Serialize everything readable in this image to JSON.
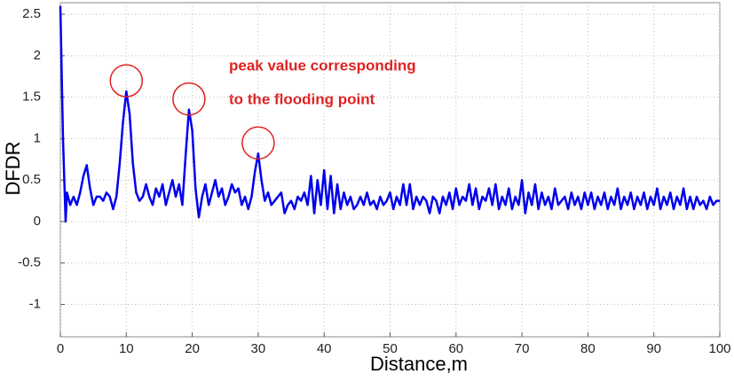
{
  "chart_data": {
    "type": "line",
    "xlabel": "Distance,m",
    "ylabel": "DFDR",
    "annotations": [
      "peak value corresponding",
      "to the flooding point"
    ],
    "color": "#0000ee",
    "highlight_color": "#e02020",
    "grid": true,
    "xlim": [
      0,
      100
    ],
    "xticks": [
      0,
      10,
      20,
      30,
      40,
      50,
      60,
      70,
      80,
      90,
      100
    ],
    "ylim": [
      -1.39,
      2.64
    ],
    "yticks": [
      -1,
      -0.5,
      0,
      0.5,
      1,
      1.5,
      2,
      2.5
    ],
    "highlights": [
      21,
      40,
      61
    ],
    "x": [
      0,
      0.4,
      0.8,
      1,
      1.5,
      2,
      2.5,
      3,
      3.5,
      4,
      4.5,
      5,
      5.5,
      6,
      6.5,
      7,
      7.5,
      8,
      8.5,
      9,
      9.5,
      10,
      10.5,
      11,
      11.5,
      12,
      12.5,
      13,
      13.5,
      14,
      14.5,
      15,
      15.5,
      16,
      16.5,
      17,
      17.5,
      18,
      18.5,
      19,
      19.5,
      20,
      20.5,
      21,
      21.5,
      22,
      22.5,
      23,
      23.5,
      24,
      24.5,
      25,
      25.5,
      26,
      26.5,
      27,
      27.5,
      28,
      28.5,
      29,
      29.5,
      30,
      30.5,
      31,
      31.5,
      32,
      32.5,
      33,
      33.5,
      34,
      34.5,
      35,
      35.5,
      36,
      36.5,
      37,
      37.5,
      38,
      38.5,
      39,
      39.5,
      40,
      40.5,
      41,
      41.5,
      42,
      42.5,
      43,
      43.5,
      44,
      44.5,
      45,
      45.5,
      46,
      46.5,
      47,
      47.5,
      48,
      48.5,
      49,
      49.5,
      50,
      50.5,
      51,
      51.5,
      52,
      52.5,
      53,
      53.5,
      54,
      54.5,
      55,
      55.5,
      56,
      56.5,
      57,
      57.5,
      58,
      58.5,
      59,
      59.5,
      60,
      60.5,
      61,
      61.5,
      62,
      62.5,
      63,
      63.5,
      64,
      64.5,
      65,
      65.5,
      66,
      66.5,
      67,
      67.5,
      68,
      68.5,
      69,
      69.5,
      70,
      70.5,
      71,
      71.5,
      72,
      72.5,
      73,
      73.5,
      74,
      74.5,
      75,
      75.5,
      76,
      76.5,
      77,
      77.5,
      78,
      78.5,
      79,
      79.5,
      80,
      80.5,
      81,
      81.5,
      82,
      82.5,
      83,
      83.5,
      84,
      84.5,
      85,
      85.5,
      86,
      86.5,
      87,
      87.5,
      88,
      88.5,
      89,
      89.5,
      90,
      90.5,
      91,
      91.5,
      92,
      92.5,
      93,
      93.5,
      94,
      94.5,
      95,
      95.5,
      96,
      96.5,
      97,
      97.5,
      98,
      98.5,
      99,
      99.5,
      100
    ],
    "values": [
      2.6,
      1.0,
      0.0,
      0.35,
      0.2,
      0.3,
      0.2,
      0.35,
      0.55,
      0.68,
      0.4,
      0.2,
      0.3,
      0.3,
      0.25,
      0.35,
      0.3,
      0.15,
      0.3,
      0.7,
      1.2,
      1.57,
      1.3,
      0.7,
      0.35,
      0.25,
      0.3,
      0.45,
      0.3,
      0.2,
      0.4,
      0.3,
      0.45,
      0.2,
      0.35,
      0.5,
      0.3,
      0.45,
      0.2,
      0.8,
      1.35,
      1.1,
      0.4,
      0.05,
      0.3,
      0.45,
      0.2,
      0.35,
      0.5,
      0.3,
      0.4,
      0.2,
      0.3,
      0.45,
      0.35,
      0.4,
      0.2,
      0.3,
      0.15,
      0.3,
      0.6,
      0.82,
      0.5,
      0.25,
      0.35,
      0.2,
      0.25,
      0.3,
      0.35,
      0.1,
      0.2,
      0.25,
      0.15,
      0.3,
      0.25,
      0.35,
      0.2,
      0.55,
      0.1,
      0.5,
      0.2,
      0.62,
      0.15,
      0.55,
      0.1,
      0.45,
      0.15,
      0.35,
      0.2,
      0.3,
      0.15,
      0.2,
      0.3,
      0.2,
      0.35,
      0.2,
      0.25,
      0.15,
      0.3,
      0.2,
      0.25,
      0.35,
      0.15,
      0.3,
      0.2,
      0.45,
      0.2,
      0.45,
      0.15,
      0.3,
      0.2,
      0.3,
      0.25,
      0.1,
      0.3,
      0.25,
      0.1,
      0.3,
      0.2,
      0.35,
      0.15,
      0.4,
      0.2,
      0.3,
      0.25,
      0.45,
      0.2,
      0.4,
      0.15,
      0.3,
      0.25,
      0.4,
      0.2,
      0.45,
      0.15,
      0.3,
      0.2,
      0.4,
      0.15,
      0.3,
      0.2,
      0.5,
      0.1,
      0.35,
      0.2,
      0.45,
      0.15,
      0.35,
      0.2,
      0.3,
      0.15,
      0.4,
      0.2,
      0.25,
      0.3,
      0.15,
      0.35,
      0.2,
      0.3,
      0.15,
      0.35,
      0.2,
      0.35,
      0.15,
      0.3,
      0.2,
      0.35,
      0.15,
      0.3,
      0.2,
      0.4,
      0.15,
      0.3,
      0.2,
      0.35,
      0.15,
      0.3,
      0.2,
      0.35,
      0.15,
      0.3,
      0.2,
      0.4,
      0.15,
      0.3,
      0.2,
      0.35,
      0.15,
      0.3,
      0.2,
      0.4,
      0.15,
      0.3,
      0.15,
      0.3,
      0.2,
      0.25,
      0.15,
      0.3,
      0.2,
      0.25,
      0.25
    ]
  }
}
